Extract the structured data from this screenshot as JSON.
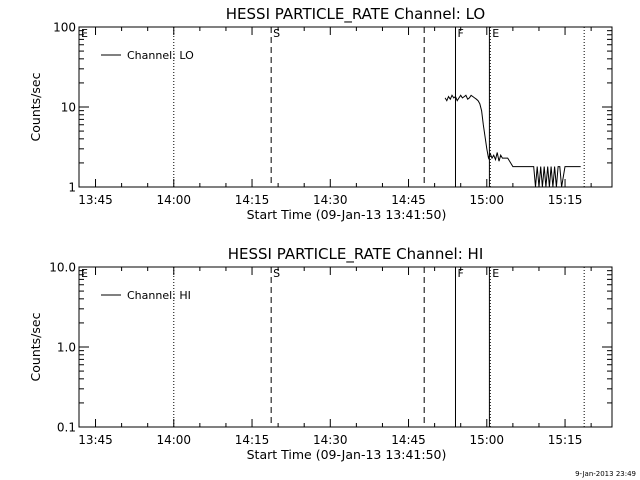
{
  "stamp": "9-Jan-2013 23:49",
  "chart_data": [
    {
      "type": "line",
      "title": "HESSI PARTICLE_RATE Channel: LO",
      "xlabel": "Start Time (09-Jan-13 13:41:50)",
      "ylabel": "Counts/sec",
      "yscale": "log",
      "xlim": [
        "13:41:50",
        "15:24:00"
      ],
      "ylim": [
        1,
        100
      ],
      "x_ticks": [
        "13:45",
        "14:00",
        "14:15",
        "14:30",
        "14:45",
        "15:00",
        "15:15"
      ],
      "y_ticks": [
        "1",
        "10",
        "100"
      ],
      "legend": "top-left",
      "series": [
        {
          "name": "Channel: LO",
          "x": [
            "14:52:00",
            "14:52:20",
            "14:52:40",
            "14:53:00",
            "14:53:20",
            "14:53:40",
            "14:54:00",
            "14:54:20",
            "14:54:40",
            "14:55:00",
            "14:55:20",
            "14:55:40",
            "14:56:00",
            "14:56:20",
            "14:56:40",
            "14:57:00",
            "14:57:20",
            "14:57:40",
            "14:58:00",
            "14:58:20",
            "14:58:40",
            "14:59:00",
            "14:59:20",
            "14:59:40",
            "15:00:00",
            "15:00:20",
            "15:00:40",
            "15:01:00",
            "15:01:20",
            "15:01:40",
            "15:02:00",
            "15:02:20",
            "15:02:40",
            "15:03:00",
            "15:04:00",
            "15:05:00",
            "15:06:00",
            "15:06:40",
            "15:07:00",
            "15:07:20",
            "15:07:40",
            "15:08:00",
            "15:08:20",
            "15:08:40",
            "15:09:00",
            "15:09:20",
            "15:09:40",
            "15:10:00",
            "15:10:20",
            "15:10:40",
            "15:11:00",
            "15:11:20",
            "15:11:40",
            "15:12:00",
            "15:12:20",
            "15:12:40",
            "15:13:00",
            "15:13:20",
            "15:13:40",
            "15:14:00",
            "15:14:20",
            "15:15:00",
            "15:16:00",
            "15:17:00",
            "15:18:00"
          ],
          "y": [
            13,
            12,
            13.5,
            12.5,
            14,
            13,
            13.5,
            12,
            13,
            14,
            13,
            13.5,
            14,
            12.5,
            13,
            14,
            13.5,
            13,
            12.5,
            12,
            11,
            9,
            6,
            4.2,
            3,
            2.3,
            2.6,
            2.3,
            2.5,
            2.2,
            2.7,
            2.1,
            2.5,
            2.3,
            2.3,
            1.8,
            1.8,
            1.8,
            1.8,
            1.8,
            1.8,
            1.8,
            1.8,
            1.8,
            1.8,
            1,
            1.8,
            1,
            1.8,
            1,
            1.8,
            1,
            1.8,
            1,
            1.8,
            1,
            1.8,
            1,
            1.8,
            1.8,
            1,
            1.8,
            1.8,
            1.8,
            1.8
          ]
        }
      ]
    },
    {
      "type": "line",
      "title": "HESSI PARTICLE_RATE Channel: HI",
      "xlabel": "Start Time (09-Jan-13 13:41:50)",
      "ylabel": "Counts/sec",
      "yscale": "log",
      "xlim": [
        "13:41:50",
        "15:24:00"
      ],
      "ylim": [
        0.1,
        10
      ],
      "x_ticks": [
        "13:45",
        "14:00",
        "14:15",
        "14:30",
        "14:45",
        "15:00",
        "15:15"
      ],
      "y_ticks": [
        "0.1",
        "1.0",
        "10.0"
      ],
      "legend": "top-left",
      "series": [
        {
          "name": "Channel: HI",
          "x": [],
          "y": []
        }
      ]
    }
  ],
  "markers": [
    {
      "label": "E",
      "time": "13:41:50",
      "style": "dotted"
    },
    {
      "label": "",
      "time": "14:00:00",
      "style": "dotted"
    },
    {
      "label": "S",
      "time": "14:18:40",
      "style": "dashed"
    },
    {
      "label": "",
      "time": "14:48:00",
      "style": "dashed"
    },
    {
      "label": "F",
      "time": "14:54:00",
      "style": "solid"
    },
    {
      "label": "",
      "time": "15:00:30",
      "style": "solid"
    },
    {
      "label": "E",
      "time": "15:00:40",
      "style": "dotted"
    },
    {
      "label": "",
      "time": "15:18:40",
      "style": "dotted"
    }
  ]
}
